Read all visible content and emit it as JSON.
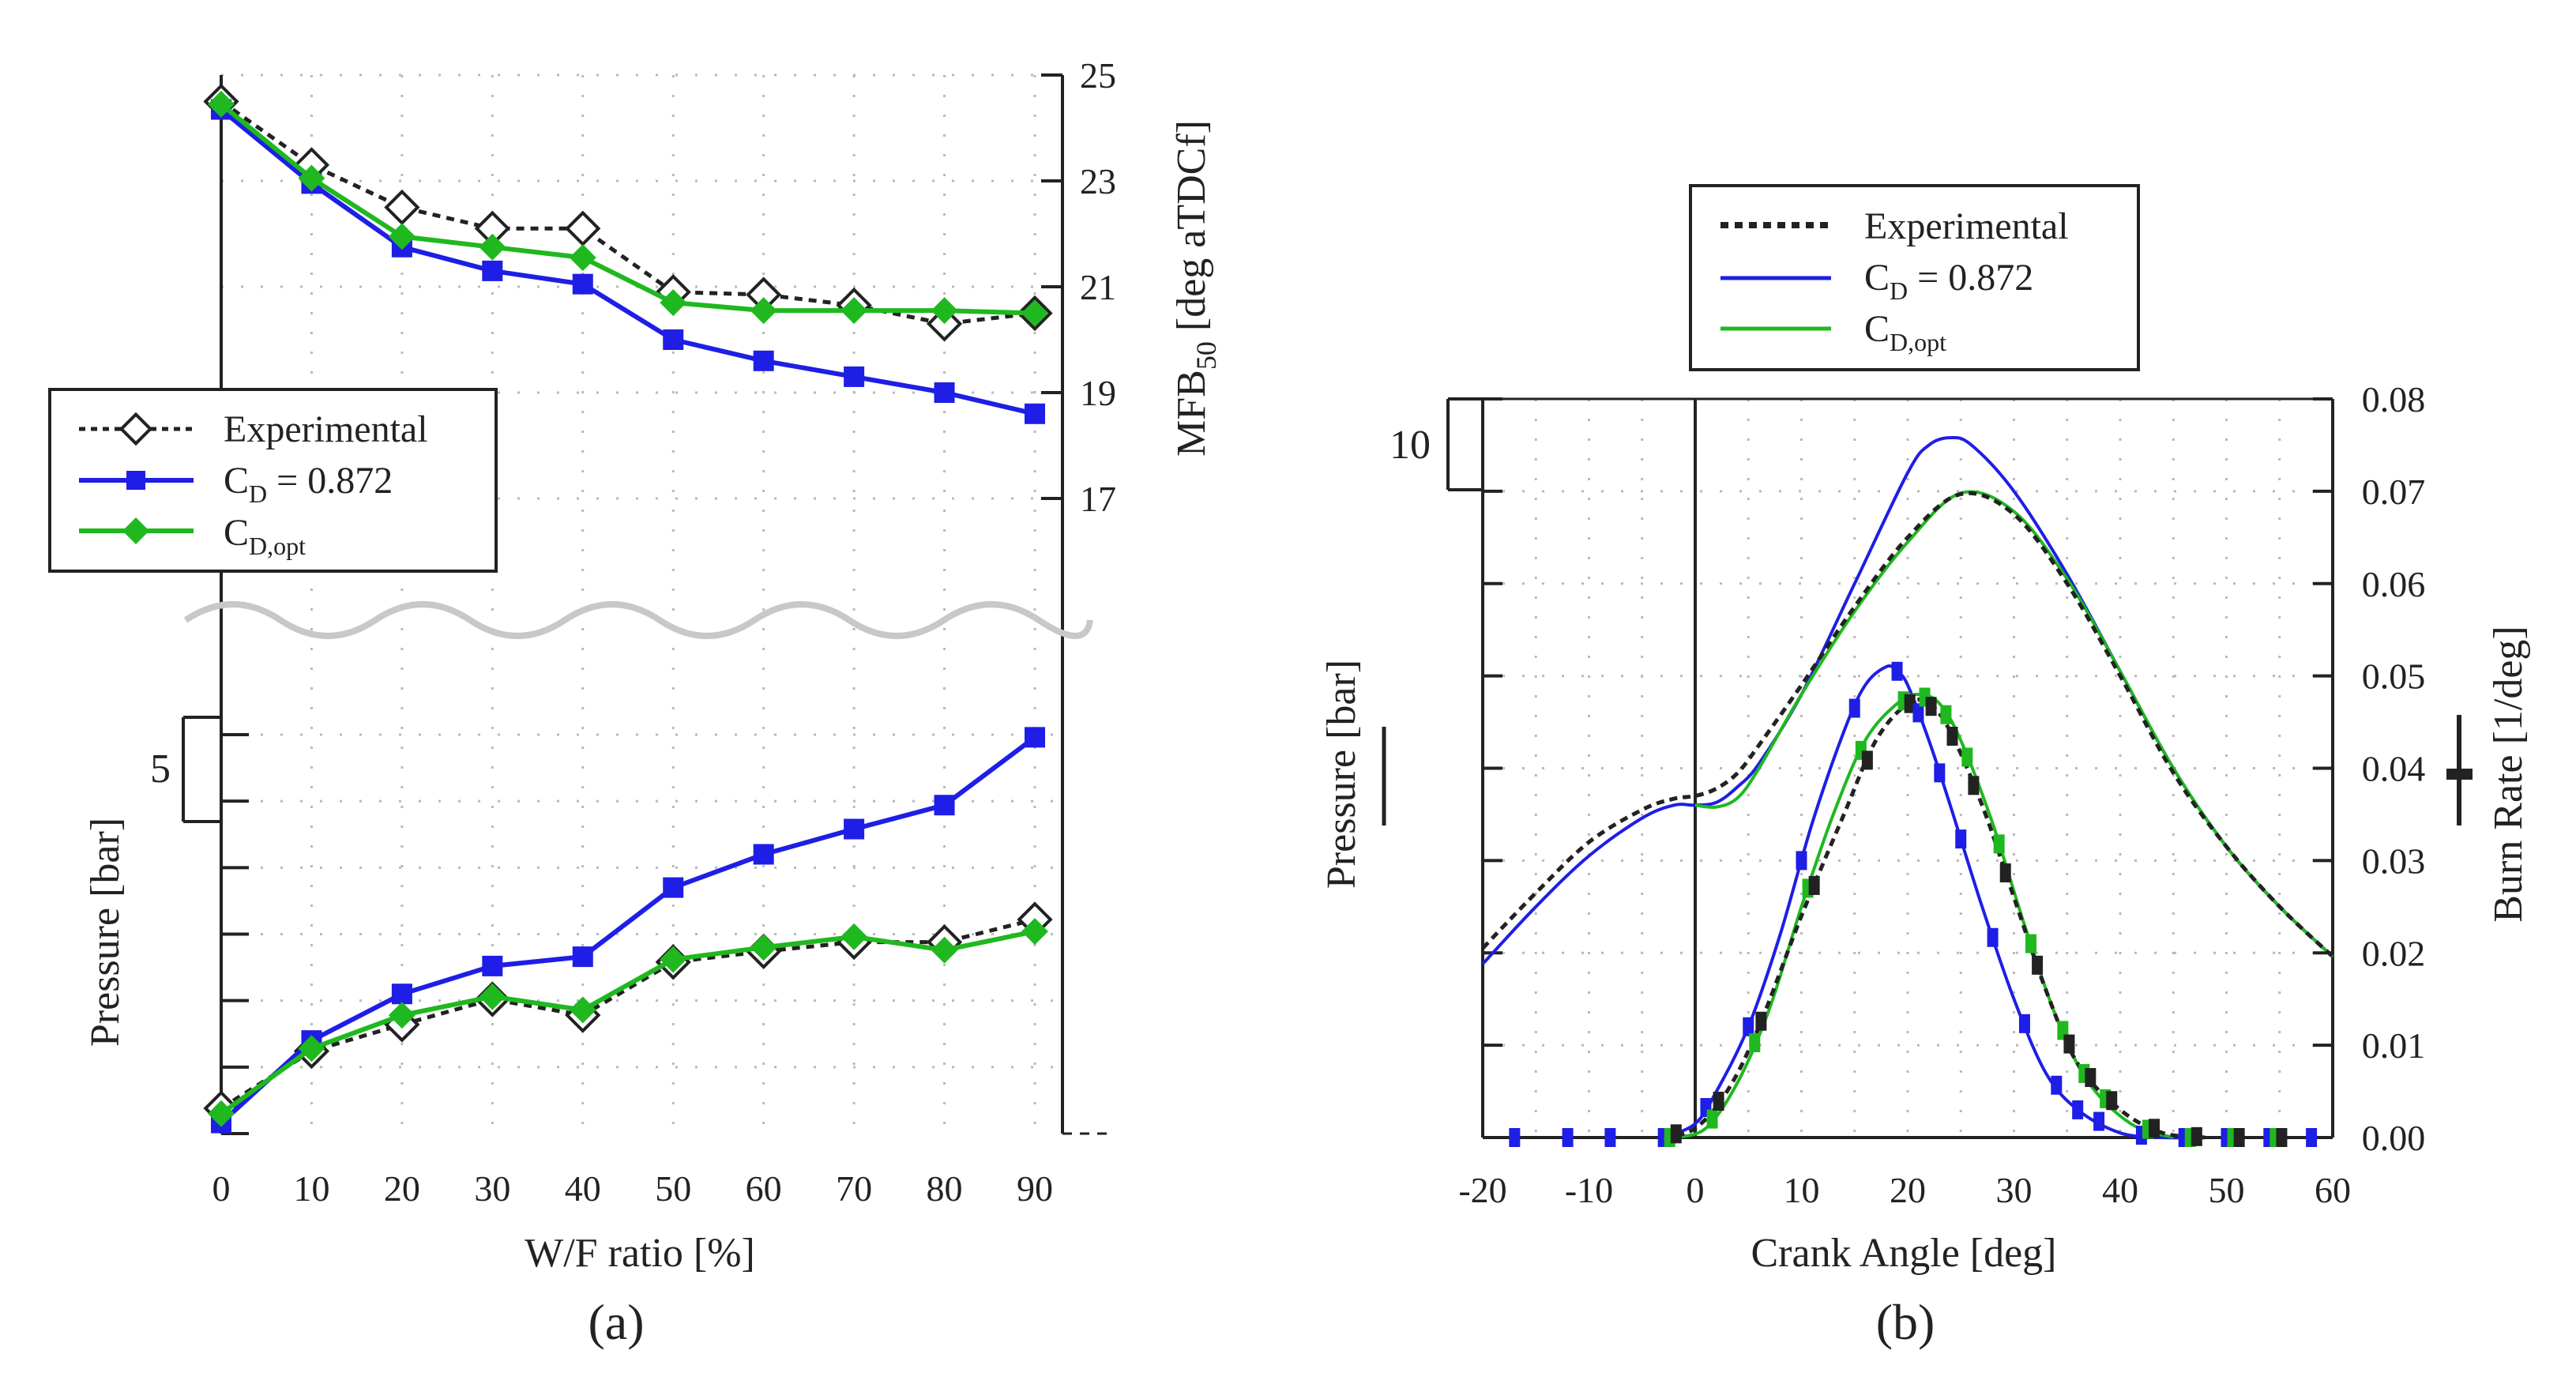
{
  "panels": [
    {
      "caption": "(a)",
      "chart_data": {
        "type": "line",
        "xlabel": "W/F ratio [%]",
        "x_ticks": [
          "0",
          "10",
          "20",
          "30",
          "40",
          "50",
          "60",
          "70",
          "80",
          "90"
        ],
        "xlim": [
          0,
          90
        ],
        "mfb_axis": {
          "label": "MFB",
          "label_sub": "50",
          "label_tail": " [deg aTDCf]",
          "ticks": [
            "17",
            "19",
            "21",
            "23",
            "25"
          ],
          "ylim": [
            15,
            25
          ]
        },
        "pressure_axis": {
          "label": "Pressure [bar]",
          "scale_label": "5",
          "ylim": [
            0,
            30
          ]
        },
        "legend": [
          "Experimental",
          "C",
          "D",
          " = 0.872",
          "D,opt"
        ],
        "x": [
          0,
          10,
          20,
          30,
          40,
          50,
          60,
          70,
          80,
          90
        ],
        "mfb_series": [
          {
            "name": "Experimental",
            "color": "#222222",
            "values": [
              24.5,
              23.3,
              22.5,
              22.1,
              22.1,
              20.9,
              20.85,
              20.65,
              20.3,
              20.5
            ]
          },
          {
            "name": "C_D = 0.872",
            "color": "#1e1ee6",
            "values": [
              24.35,
              22.95,
              21.75,
              21.3,
              21.05,
              20.0,
              19.6,
              19.3,
              19.0,
              18.6
            ]
          },
          {
            "name": "C_D,opt",
            "color": "#1fb81f",
            "values": [
              24.45,
              23.05,
              21.95,
              21.75,
              21.55,
              20.7,
              20.55,
              20.55,
              20.55,
              20.5
            ]
          }
        ],
        "pressure_series": [
          {
            "name": "Experimental",
            "color": "#222222",
            "values": [
              1.9,
              6.2,
              8.2,
              10.1,
              8.9,
              12.9,
              13.7,
              14.4,
              14.4,
              16.1
            ]
          },
          {
            "name": "C_D = 0.872",
            "color": "#1e1ee6",
            "values": [
              0.8,
              7.0,
              10.5,
              12.6,
              13.3,
              18.5,
              21.0,
              22.9,
              24.7,
              29.8
            ]
          },
          {
            "name": "C_D,opt",
            "color": "#1fb81f",
            "values": [
              1.5,
              6.4,
              8.9,
              10.3,
              9.3,
              13.1,
              14.0,
              14.8,
              13.8,
              15.2
            ]
          }
        ]
      }
    },
    {
      "caption": "(b)",
      "chart_data": {
        "type": "line",
        "xlabel": "Crank Angle [deg]",
        "x_ticks": [
          "-20",
          "-10",
          "0",
          "10",
          "20",
          "30",
          "40",
          "50",
          "60"
        ],
        "xlim": [
          -20,
          60
        ],
        "burn_axis": {
          "label": "Burn Rate [1/deg]",
          "ticks": [
            "0.00",
            "0.01",
            "0.02",
            "0.03",
            "0.04",
            "0.05",
            "0.06",
            "0.07",
            "0.08"
          ],
          "ylim": [
            0,
            0.08
          ]
        },
        "pressure_axis": {
          "label": "Pressure [bar]",
          "scale_label": "10",
          "ylim": [
            0,
            80
          ]
        },
        "legend": [
          "Experimental",
          "C",
          "D",
          " = 0.872",
          "D,opt"
        ],
        "pressure_series": [
          {
            "name": "Experimental",
            "color": "#222222",
            "x": [
              -20,
              -15,
              -10,
              -5,
              -2,
              0,
              2,
              4,
              6,
              10,
              15,
              20,
              25,
              30,
              35,
              40,
              45,
              50,
              55,
              60
            ],
            "values": [
              20.5,
              26.5,
              32.0,
              35.5,
              36.7,
              37.0,
              37.8,
              39.5,
              42.5,
              49.0,
              57.5,
              65.0,
              69.7,
              67.5,
              60.0,
              50.0,
              39.5,
              31.5,
              25.0,
              19.6
            ]
          },
          {
            "name": "C_D = 0.872",
            "color": "#1e1ee6",
            "x": [
              -20,
              -15,
              -10,
              -5,
              -2,
              0,
              2,
              4,
              6,
              10,
              15,
              20,
              22,
              24,
              26,
              30,
              35,
              40,
              45,
              50,
              55,
              60
            ],
            "values": [
              18.8,
              25.0,
              30.5,
              34.6,
              36.0,
              36.0,
              36.3,
              38.0,
              40.5,
              48.0,
              60.0,
              72.0,
              75.0,
              75.8,
              75.0,
              70.0,
              61.0,
              50.5,
              40.0,
              31.5,
              25.0,
              19.6
            ]
          },
          {
            "name": "C_D,opt",
            "color": "#1fb81f",
            "x": [
              0,
              2,
              4,
              6,
              10,
              15,
              20,
              25,
              30,
              35,
              40,
              45,
              50,
              55,
              60
            ],
            "values": [
              36.0,
              35.8,
              36.8,
              40.0,
              48.0,
              57.0,
              64.5,
              69.8,
              67.8,
              60.5,
              50.5,
              40.0,
              31.5,
              25.0,
              19.6
            ]
          }
        ],
        "burn_series": [
          {
            "name": "Experimental",
            "color": "#222222",
            "x": [
              -3,
              0,
              3,
              6,
              10,
              14,
              17,
              20,
              22,
              24,
              27,
              30,
              33,
              36,
              40,
              44,
              48
            ],
            "values": [
              0.0,
              0.001,
              0.005,
              0.012,
              0.024,
              0.035,
              0.043,
              0.047,
              0.047,
              0.044,
              0.036,
              0.026,
              0.016,
              0.008,
              0.003,
              0.0005,
              0.0
            ]
          },
          {
            "name": "C_D = 0.872",
            "color": "#1e1ee6",
            "x": [
              -3,
              0,
              2,
              5,
              8,
              11,
              14,
              16,
              18,
              19,
              20,
              22,
              24,
              27,
              30,
              33,
              36,
              40,
              44,
              48
            ],
            "values": [
              0.0,
              0.0015,
              0.005,
              0.012,
              0.022,
              0.034,
              0.044,
              0.049,
              0.051,
              0.0505,
              0.049,
              0.043,
              0.036,
              0.025,
              0.015,
              0.007,
              0.003,
              0.0005,
              0.0,
              0.0
            ]
          },
          {
            "name": "C_D,opt",
            "color": "#1fb81f",
            "x": [
              -2,
              1,
              4,
              7,
              10,
              13,
              16,
              19,
              21,
              23,
              25,
              28,
              31,
              34,
              37,
              41,
              45
            ],
            "values": [
              0.0,
              0.001,
              0.006,
              0.014,
              0.025,
              0.035,
              0.043,
              0.047,
              0.048,
              0.047,
              0.043,
              0.034,
              0.023,
              0.013,
              0.006,
              0.0015,
              0.0
            ]
          }
        ],
        "burn_markers_x": [
          -17,
          -12,
          -8,
          -3,
          1,
          5,
          10,
          15,
          19,
          21,
          23,
          25,
          28,
          31,
          34,
          36,
          38,
          42,
          46,
          50,
          54,
          58
        ]
      }
    }
  ]
}
